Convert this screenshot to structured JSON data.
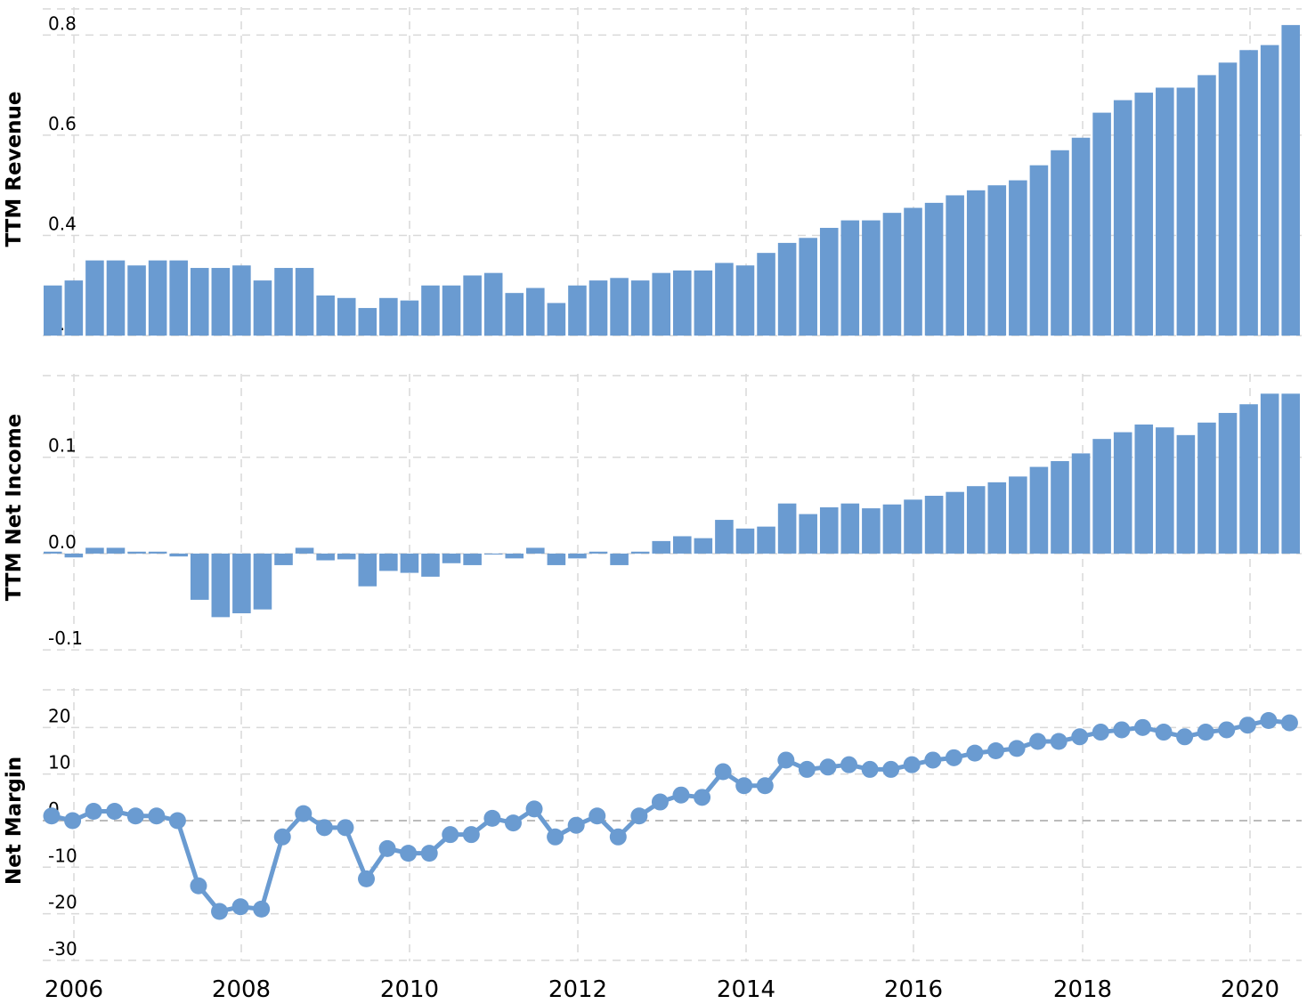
{
  "chart_data": [
    {
      "type": "bar",
      "ylabel": "TTM Revenue",
      "ylim": [
        0.2,
        0.87
      ],
      "yticks": [
        0.2,
        0.4,
        0.6,
        0.8
      ],
      "ytick_labels": [
        "0.2",
        "0.4",
        "0.6",
        "0.8"
      ],
      "grid": true,
      "color": "#6a9bd1",
      "values": [
        0.3,
        0.31,
        0.35,
        0.35,
        0.34,
        0.35,
        0.35,
        0.335,
        0.335,
        0.34,
        0.31,
        0.335,
        0.335,
        0.28,
        0.275,
        0.255,
        0.275,
        0.27,
        0.3,
        0.3,
        0.32,
        0.325,
        0.285,
        0.295,
        0.265,
        0.3,
        0.31,
        0.315,
        0.31,
        0.325,
        0.33,
        0.33,
        0.345,
        0.34,
        0.365,
        0.385,
        0.395,
        0.415,
        0.43,
        0.43,
        0.445,
        0.455,
        0.465,
        0.48,
        0.49,
        0.5,
        0.51,
        0.54,
        0.57,
        0.595,
        0.645,
        0.67,
        0.685,
        0.695,
        0.695,
        0.72,
        0.745,
        0.77,
        0.78,
        0.82
      ]
    },
    {
      "type": "bar",
      "ylabel": "TTM Net Income",
      "ylim": [
        -0.098,
        0.194
      ],
      "yticks": [
        -0.1,
        0.0,
        0.1
      ],
      "ytick_labels": [
        "-0.1",
        "0.0",
        "0.1"
      ],
      "grid": true,
      "color": "#6a9bd1",
      "values": [
        0.002,
        -0.004,
        0.006,
        0.006,
        0.002,
        0.002,
        -0.003,
        -0.048,
        -0.066,
        -0.062,
        -0.058,
        -0.012,
        0.006,
        -0.007,
        -0.006,
        -0.034,
        -0.018,
        -0.02,
        -0.024,
        -0.01,
        -0.012,
        -0.001,
        -0.005,
        0.006,
        -0.012,
        -0.005,
        0.002,
        -0.012,
        0.002,
        0.013,
        0.018,
        0.016,
        0.035,
        0.026,
        0.028,
        0.052,
        0.041,
        0.048,
        0.052,
        0.047,
        0.051,
        0.056,
        0.06,
        0.064,
        0.07,
        0.074,
        0.08,
        0.09,
        0.096,
        0.104,
        0.119,
        0.126,
        0.134,
        0.131,
        0.123,
        0.136,
        0.146,
        0.155,
        0.166,
        0.166
      ]
    },
    {
      "type": "line",
      "ylabel": "Net Margin",
      "ylim": [
        -30.2,
        30
      ],
      "yticks": [
        -30,
        -20,
        -10,
        0,
        10,
        20
      ],
      "ytick_labels": [
        "-30",
        "-20",
        "-10",
        "0",
        "10",
        "20"
      ],
      "grid": true,
      "color": "#6a9bd1",
      "values": [
        1,
        0,
        2,
        2,
        1,
        1,
        0,
        -14,
        -19.5,
        -18.5,
        -19,
        -3.5,
        1.5,
        -1.5,
        -1.5,
        -12.5,
        -6,
        -7,
        -7,
        -3,
        -3,
        0.5,
        -0.5,
        2.5,
        -3.5,
        -1,
        1,
        -3.5,
        1,
        4,
        5.5,
        5,
        10.5,
        7.5,
        7.5,
        13,
        11,
        11.5,
        12,
        11,
        11,
        12,
        13,
        13.5,
        14.5,
        15,
        15.5,
        17,
        17,
        18,
        19,
        19.5,
        20,
        19,
        18,
        19,
        19.5,
        20.5,
        21.5,
        21
      ]
    }
  ],
  "x_axis": {
    "tick_labels": [
      "2006",
      "2008",
      "2010",
      "2012",
      "2014",
      "2016",
      "2018",
      "2020"
    ],
    "first_year": 2006,
    "year_step": 2
  }
}
